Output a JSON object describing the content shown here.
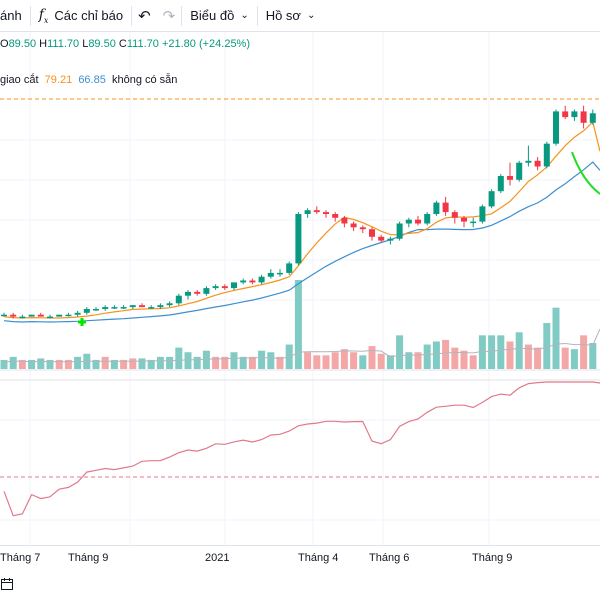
{
  "toolbar": {
    "item1_label": "ánh",
    "indicators_label": "Các chỉ báo",
    "indicators_icon": "function-icon",
    "chart_label": "Biểu đồ",
    "profile_label": "Hồ sơ"
  },
  "ohlc": {
    "o_key": "O",
    "o_val": "89.50",
    "h_key": "H",
    "h_val": "111.70",
    "l_key": "L",
    "l_val": "89.50",
    "c_key": "C",
    "c_val": "111.70",
    "change": "+21.80 (+24.25%)"
  },
  "ma_legend": {
    "label": "giao cắt",
    "ma1": "79.21",
    "ma2": "66.85",
    "status": "không có sẵn"
  },
  "time_axis": [
    "Tháng 7",
    "Tháng 9",
    "2021",
    "Tháng 4",
    "Tháng 6",
    "Tháng 9"
  ],
  "colors": {
    "up": "#089981",
    "down": "#f23645",
    "vol_up": "#80cbc4",
    "vol_down": "#f4a7a7",
    "ma_fast": "#f7931a",
    "ma_slow": "#3d8fd1",
    "rsi": "#e07a8b",
    "signal": "#00e600"
  },
  "chart_data": {
    "type": "candlestick",
    "candles": [
      [
        82,
        83,
        81,
        82
      ],
      [
        82,
        83,
        80,
        81
      ],
      [
        81,
        82,
        80,
        81
      ],
      [
        81,
        82,
        81,
        82
      ],
      [
        82,
        83,
        81,
        81
      ],
      [
        81,
        82,
        80,
        81
      ],
      [
        81,
        82,
        81,
        82
      ],
      [
        82,
        83,
        81,
        82
      ],
      [
        82,
        84,
        81,
        83
      ],
      [
        83,
        86,
        82,
        85
      ],
      [
        85,
        86,
        84,
        85
      ],
      [
        85,
        87,
        84,
        86
      ],
      [
        86,
        87,
        85,
        86
      ],
      [
        86,
        87,
        85,
        86
      ],
      [
        86,
        87,
        85,
        87
      ],
      [
        87,
        88,
        86,
        86
      ],
      [
        86,
        87,
        85,
        86
      ],
      [
        86,
        88,
        85,
        87
      ],
      [
        87,
        89,
        86,
        88
      ],
      [
        88,
        93,
        87,
        92
      ],
      [
        92,
        95,
        90,
        94
      ],
      [
        94,
        95,
        92,
        93
      ],
      [
        93,
        97,
        92,
        96
      ],
      [
        96,
        98,
        95,
        97
      ],
      [
        97,
        98,
        95,
        96
      ],
      [
        96,
        99,
        95,
        99
      ],
      [
        99,
        101,
        98,
        100
      ],
      [
        100,
        101,
        98,
        99
      ],
      [
        99,
        103,
        98,
        102
      ],
      [
        102,
        106,
        101,
        104
      ],
      [
        104,
        106,
        102,
        104
      ],
      [
        104,
        110,
        103,
        109
      ],
      [
        109,
        136,
        108,
        135
      ],
      [
        135,
        138,
        133,
        137
      ],
      [
        137,
        139,
        135,
        136
      ],
      [
        136,
        137,
        133,
        135
      ],
      [
        135,
        136,
        131,
        133
      ],
      [
        133,
        134,
        128,
        130
      ],
      [
        130,
        131,
        126,
        128
      ],
      [
        128,
        129,
        125,
        127
      ],
      [
        127,
        128,
        121,
        123
      ],
      [
        123,
        124,
        120,
        121
      ],
      [
        121,
        123,
        119,
        122
      ],
      [
        122,
        131,
        121,
        130
      ],
      [
        130,
        133,
        128,
        132
      ],
      [
        132,
        134,
        129,
        130
      ],
      [
        130,
        136,
        129,
        135
      ],
      [
        135,
        142,
        134,
        141
      ],
      [
        141,
        144,
        134,
        136
      ],
      [
        136,
        137,
        130,
        133
      ],
      [
        133,
        134,
        128,
        131
      ],
      [
        131,
        133,
        128,
        131
      ],
      [
        131,
        140,
        130,
        139
      ],
      [
        139,
        148,
        138,
        147
      ],
      [
        147,
        156,
        146,
        155
      ],
      [
        155,
        162,
        150,
        153
      ],
      [
        153,
        163,
        152,
        162
      ],
      [
        162,
        171,
        160,
        163
      ],
      [
        163,
        165,
        158,
        160
      ],
      [
        160,
        173,
        159,
        172
      ],
      [
        172,
        190,
        171,
        189
      ],
      [
        189,
        192,
        185,
        186
      ],
      [
        186,
        190,
        184,
        189
      ],
      [
        189,
        192,
        180,
        183
      ],
      [
        183,
        190,
        182,
        188
      ]
    ],
    "volume_up": [
      1,
      1,
      0,
      1,
      1,
      1,
      0,
      0,
      1,
      1,
      1,
      0,
      1,
      0,
      0,
      1,
      1,
      1,
      1,
      1,
      1,
      1,
      1,
      0,
      0,
      1,
      1,
      0,
      1,
      1,
      0,
      1,
      1,
      0,
      0,
      0,
      0,
      0,
      0,
      1,
      0,
      0,
      1,
      1,
      1,
      0,
      1,
      1,
      0,
      0,
      0,
      0,
      1,
      1,
      1,
      0,
      1,
      0,
      0,
      1,
      1,
      0,
      1,
      0,
      1
    ]
  }
}
